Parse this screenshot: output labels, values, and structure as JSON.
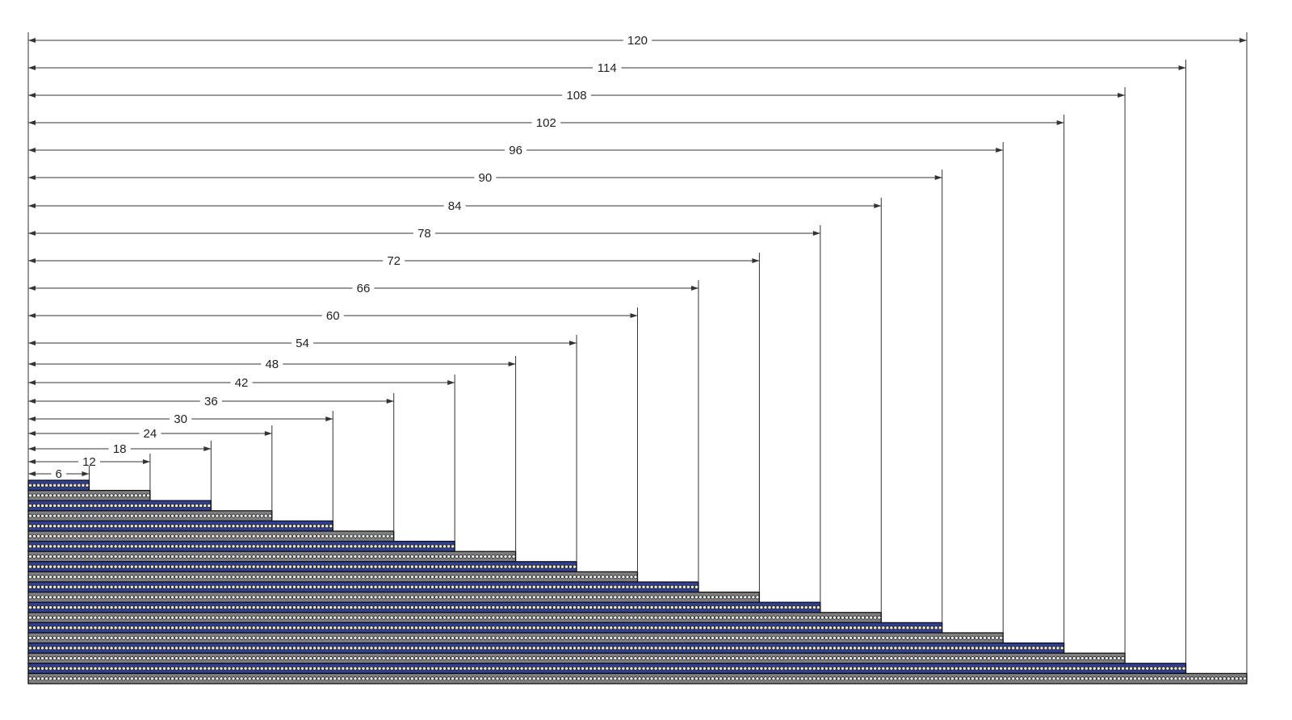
{
  "diagram": {
    "bar_lengths": [
      6,
      12,
      18,
      24,
      30,
      36,
      42,
      48,
      54,
      60,
      66,
      72,
      78,
      84,
      90,
      96,
      102,
      108,
      114,
      120
    ],
    "dimension_labels": [
      "6",
      "12",
      "18",
      "24",
      "30",
      "36",
      "42",
      "48",
      "54",
      "60",
      "66",
      "72",
      "78",
      "84",
      "90",
      "96",
      "102",
      "108",
      "114",
      "120"
    ],
    "colors": {
      "blue_bar": "#2c3f9c",
      "gray_bar": "#7f7f7f",
      "hole": "#e8e8e8",
      "hole_on_blue": "#f5e9a8",
      "outline": "#111111",
      "dimension_line": "#333333"
    }
  }
}
